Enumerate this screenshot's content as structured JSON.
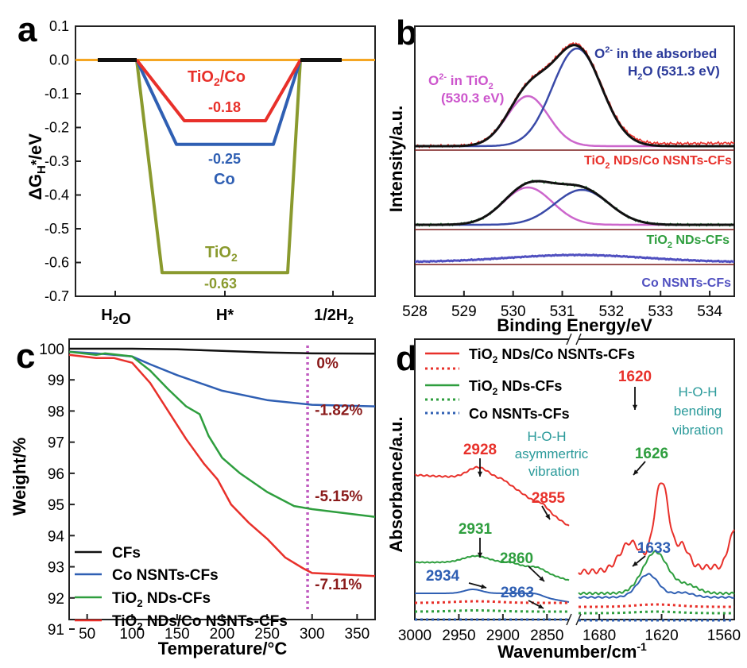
{
  "panels": {
    "a": "a",
    "b": "b",
    "c": "c",
    "d": "d"
  },
  "chart_data": [
    {
      "panel": "a",
      "type": "line",
      "ylabel": "ΔGH*/eV",
      "ylim": [
        -0.7,
        0.1
      ],
      "yticks": [
        0.1,
        0.0,
        -0.1,
        -0.2,
        -0.3,
        -0.4,
        -0.5,
        -0.6,
        -0.7
      ],
      "ytick_labels": [
        "0.1",
        "0.0",
        "-0.1",
        "-0.2",
        "-0.3",
        "-0.4",
        "-0.5",
        "-0.6",
        "-0.7"
      ],
      "categories": [
        "H2O",
        "H*",
        "1/2H2"
      ],
      "grid": false,
      "series": [
        {
          "name": "TiO2/Co",
          "color": "#e8302a",
          "values": [
            0,
            -0.18,
            0
          ],
          "label": "-0.18"
        },
        {
          "name": "Co",
          "color": "#2f5fb3",
          "values": [
            0,
            -0.25,
            0
          ],
          "label": "-0.25"
        },
        {
          "name": "TiO2",
          "color": "#8a9a2e",
          "values": [
            0,
            -0.63,
            0
          ],
          "label": "-0.63"
        }
      ],
      "baseline_color": "#f5a623"
    },
    {
      "panel": "b",
      "type": "line",
      "xlabel": "Binding Energy/eV",
      "ylabel": "Intensity/a.u.",
      "xlim": [
        528,
        534.5
      ],
      "xticks": [
        528,
        529,
        530,
        531,
        532,
        533,
        534
      ],
      "grid": false,
      "annotations": [
        {
          "text": "O2- in TiO2",
          "sub": "(530.3 eV)",
          "color": "#cc55cc"
        },
        {
          "text": "O2- in the absorbed",
          "sub": "H2O (531.3 eV)",
          "color": "#2b3a9a"
        }
      ],
      "series": [
        {
          "name": "TiO2 NDs/Co NSNTs-CFs",
          "color": "#e8302a",
          "peaks": [
            530.3,
            531.3
          ]
        },
        {
          "name": "TiO2 NDs-CFs",
          "color": "#2e9e3e",
          "peaks": [
            530.3,
            531.4
          ]
        },
        {
          "name": "Co NSNTs-CFs",
          "color": "#5050c0",
          "peaks": [
            531.3
          ]
        }
      ]
    },
    {
      "panel": "c",
      "type": "line",
      "xlabel": "Temperature/°C",
      "ylabel": "Weight/%",
      "xlim": [
        30,
        370
      ],
      "ylim": [
        91,
        100
      ],
      "xticks": [
        50,
        100,
        150,
        200,
        250,
        300,
        350
      ],
      "yticks": [
        91,
        92,
        93,
        94,
        95,
        96,
        97,
        98,
        99,
        100
      ],
      "grid": false,
      "marker_x": 295,
      "series": [
        {
          "name": "CFs",
          "color": "#111111",
          "x": [
            30,
            80,
            100,
            150,
            200,
            250,
            300,
            370
          ],
          "y": [
            100,
            100,
            100,
            99.98,
            99.93,
            99.88,
            99.85,
            99.84
          ]
        },
        {
          "name": "Co NSNTs-CFs",
          "color": "#2f5fb3",
          "x": [
            30,
            60,
            100,
            120,
            150,
            180,
            200,
            250,
            300,
            370
          ],
          "y": [
            99.9,
            99.85,
            99.75,
            99.5,
            99.15,
            98.85,
            98.65,
            98.35,
            98.2,
            98.15
          ]
        },
        {
          "name": "TiO2 NDs-CFs",
          "color": "#2e9e3e",
          "x": [
            30,
            60,
            70,
            100,
            120,
            140,
            160,
            175,
            185,
            200,
            220,
            250,
            280,
            300,
            370
          ],
          "y": [
            99.9,
            99.8,
            99.85,
            99.75,
            99.3,
            98.7,
            98.15,
            97.9,
            97.2,
            96.5,
            96.0,
            95.4,
            94.95,
            94.85,
            94.6
          ]
        },
        {
          "name": "TiO2 NDs/Co NSNTs-CFs",
          "color": "#e8302a",
          "x": [
            30,
            60,
            80,
            100,
            120,
            140,
            160,
            180,
            195,
            210,
            230,
            250,
            270,
            290,
            300,
            370
          ],
          "y": [
            99.8,
            99.7,
            99.7,
            99.55,
            98.9,
            98.0,
            97.1,
            96.3,
            95.8,
            95.0,
            94.4,
            93.9,
            93.3,
            92.95,
            92.8,
            92.7
          ]
        }
      ],
      "labels": [
        {
          "text": "0%",
          "x": 305,
          "y": 99.55
        },
        {
          "text": "-1.82%",
          "x": 303,
          "y": 98.05
        },
        {
          "text": "-5.15%",
          "x": 303,
          "y": 95.28
        },
        {
          "text": "-7.11%",
          "x": 303,
          "y": 92.45
        }
      ]
    },
    {
      "panel": "d",
      "type": "line",
      "xlabel": "Wavenumber/cm-1",
      "ylabel": "Absorbance/a.u.",
      "xlim_left": [
        3000,
        2825
      ],
      "xlim_right": [
        1700,
        1550
      ],
      "xticks_left": [
        3000,
        2950,
        2900,
        2850
      ],
      "xticks_right": [
        1680,
        1620,
        1560
      ],
      "grid": false,
      "legend": [
        {
          "name": "TiO2 NDs/Co NSNTs-CFs",
          "color": "#e8302a"
        },
        {
          "name": "TiO2 NDs-CFs",
          "color": "#2e9e3e"
        },
        {
          "name": "Co NSNTs-CFs",
          "color": "#2f5fb3"
        }
      ],
      "peak_labels": [
        {
          "text": "2928",
          "color": "#e8302a"
        },
        {
          "text": "2855",
          "color": "#e8302a"
        },
        {
          "text": "2931",
          "color": "#2e9e3e"
        },
        {
          "text": "2860",
          "color": "#2e9e3e"
        },
        {
          "text": "2934",
          "color": "#2f5fb3"
        },
        {
          "text": "2863",
          "color": "#2f5fb3"
        },
        {
          "text": "1620",
          "color": "#e8302a"
        },
        {
          "text": "1626",
          "color": "#2e9e3e"
        },
        {
          "text": "1633",
          "color": "#2f5fb3"
        }
      ],
      "notes": [
        {
          "lines": [
            "H-O-H",
            "asymmertric",
            "vibration"
          ],
          "color": "#2a9a9a"
        },
        {
          "lines": [
            "H-O-H",
            "bending",
            "vibration"
          ],
          "color": "#2a9a9a"
        }
      ]
    }
  ]
}
